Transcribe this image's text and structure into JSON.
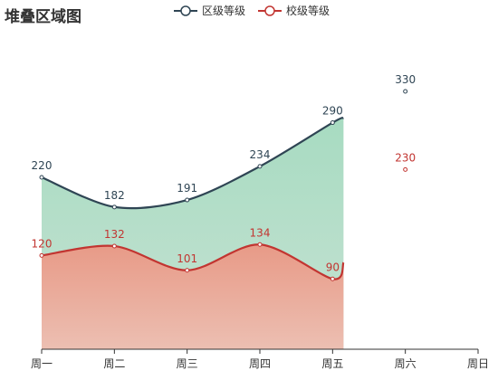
{
  "chart_data": {
    "type": "area",
    "title": "堆叠区域图",
    "categories": [
      "周一",
      "周二",
      "周三",
      "周四",
      "周五",
      "周六",
      "周日"
    ],
    "series": [
      {
        "name": "区级等级",
        "values": [
          220,
          182,
          191,
          234,
          290,
          330,
          null
        ],
        "color": "#2f4554",
        "area_gradient": [
          "#a7dbc1",
          "#c6e2d3"
        ]
      },
      {
        "name": "校级等级",
        "values": [
          120,
          132,
          101,
          134,
          90,
          230,
          null
        ],
        "color": "#c23531",
        "area_gradient": [
          "#e89a87",
          "#ecbfb2"
        ]
      }
    ],
    "stacked": false,
    "smooth": true,
    "ylim": [
      0,
      330
    ],
    "grid": false,
    "legend_position": "top-center"
  }
}
